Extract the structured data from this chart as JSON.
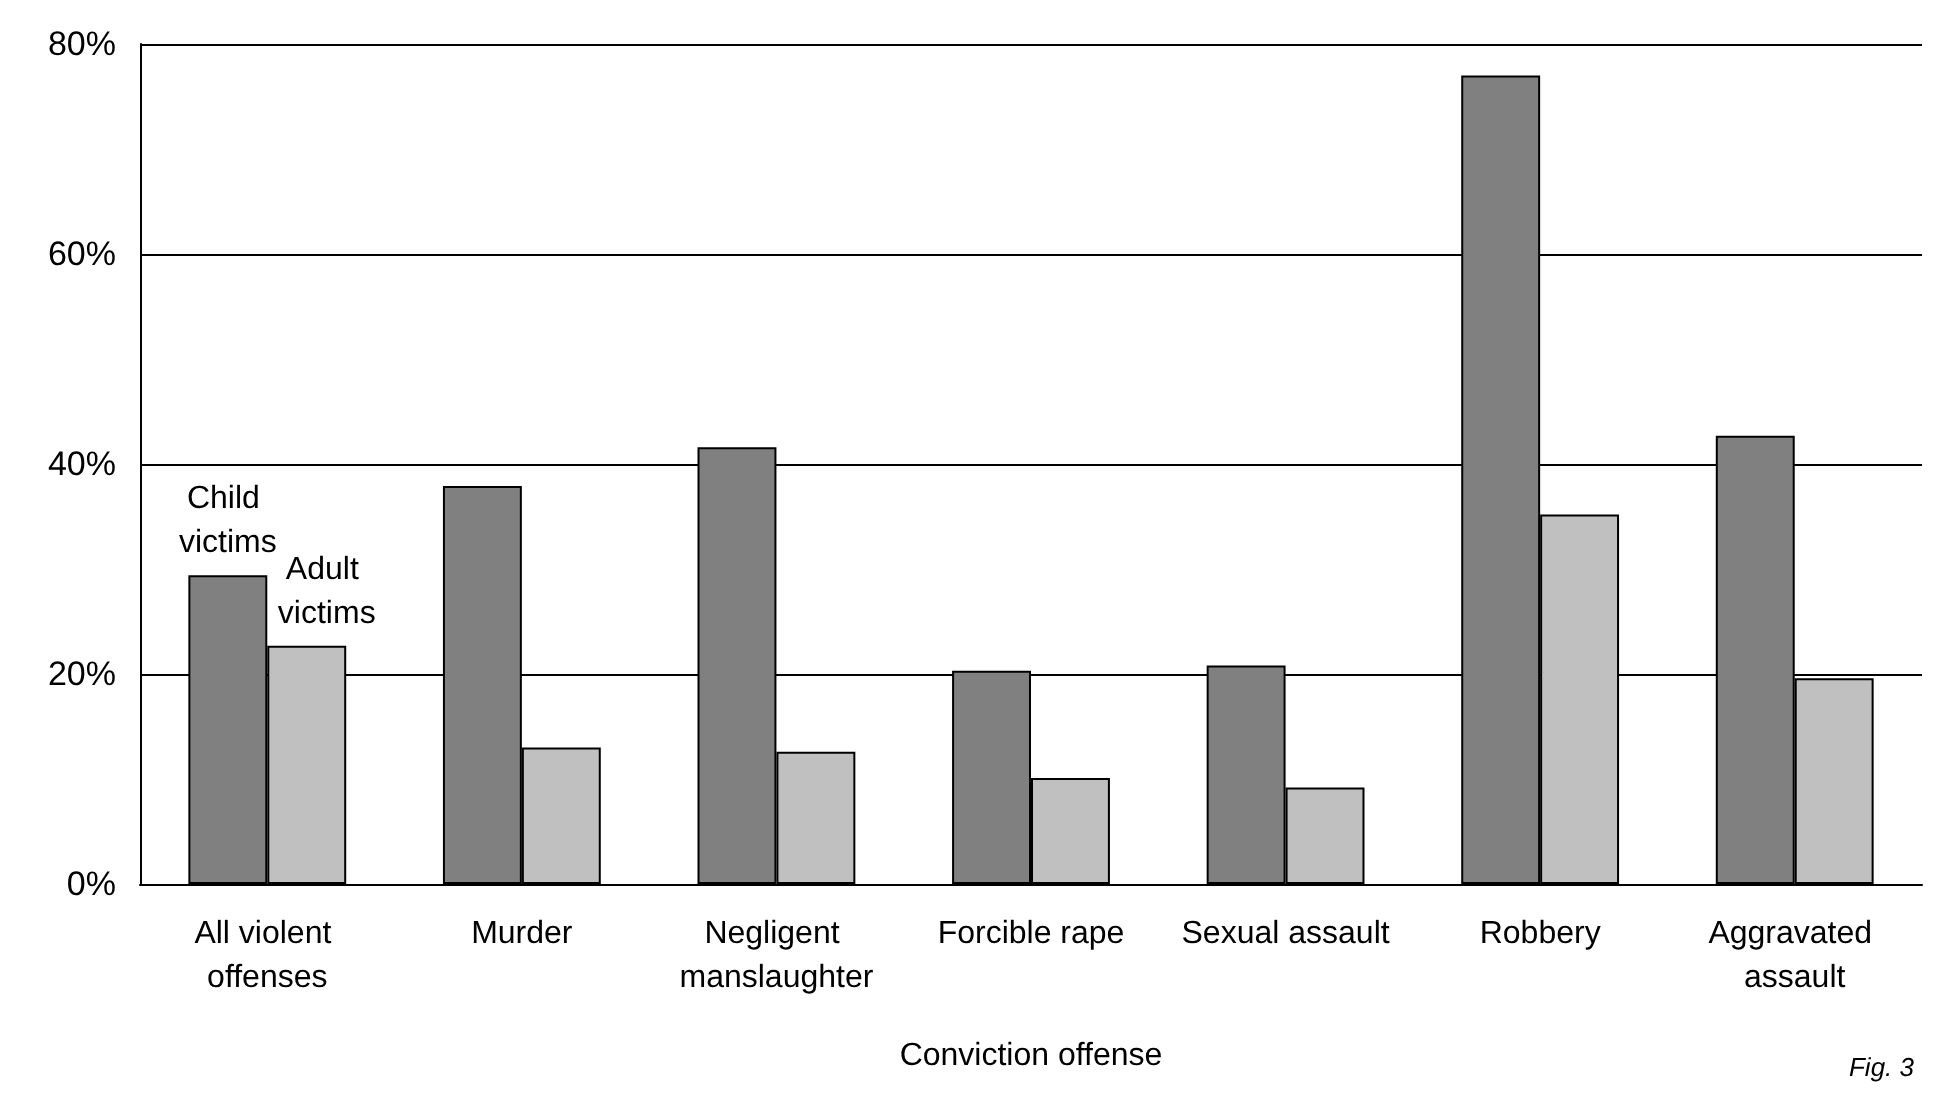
{
  "chart_data": {
    "type": "bar",
    "xlabel": "Conviction offense",
    "categories": [
      "All violent offenses",
      "Murder",
      "Negligent manslaughter",
      "Forcible rape",
      "Sexual assault",
      "Robbery",
      "Aggravated assault"
    ],
    "series": [
      {
        "name": "Child victims",
        "color": "#808080",
        "values": [
          29.4,
          37.9,
          41.6,
          20.3,
          20.8,
          77.0,
          42.7
        ]
      },
      {
        "name": "Adult victims",
        "color": "#c0c0c0",
        "values": [
          22.7,
          13.0,
          12.6,
          10.1,
          9.2,
          35.2,
          19.6
        ]
      }
    ],
    "ylim": [
      0,
      80
    ],
    "yticks": [
      {
        "value": 0,
        "label": "0%"
      },
      {
        "value": 20,
        "label": "20%"
      },
      {
        "value": 40,
        "label": "40%"
      },
      {
        "value": 60,
        "label": "60%"
      },
      {
        "value": 80,
        "label": "80%"
      }
    ],
    "grid": "y",
    "legend": false,
    "annotations": [
      "Fig. 3"
    ]
  }
}
